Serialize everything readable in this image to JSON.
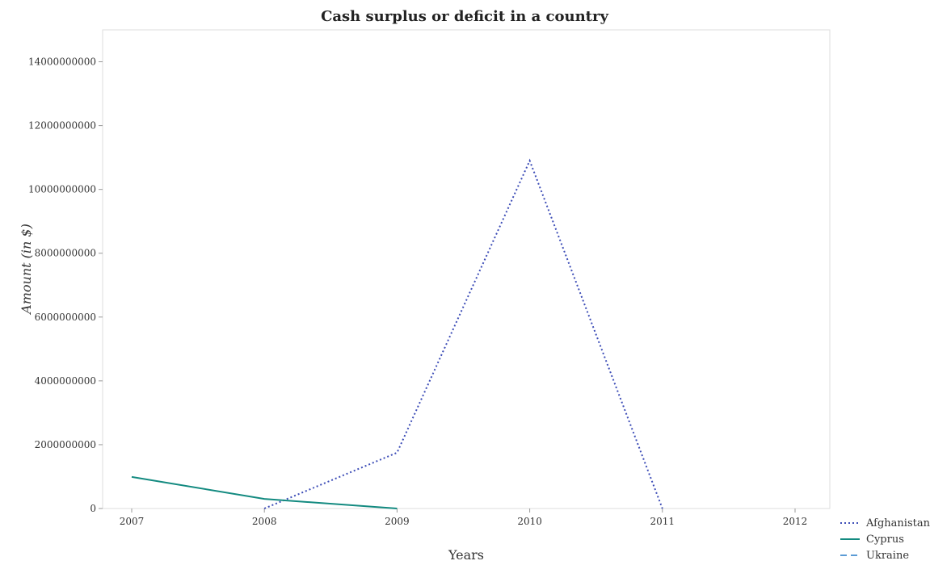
{
  "chart_data": {
    "type": "line",
    "title": "Cash surplus or deficit in a country",
    "xlabel": "Years",
    "ylabel": "Amount (in $)",
    "categories": [
      "2007",
      "2008",
      "2009",
      "2010",
      "2011",
      "2012"
    ],
    "ylim": [
      0,
      15000000000
    ],
    "yticks": [
      0,
      2000000000,
      4000000000,
      6000000000,
      8000000000,
      10000000000,
      12000000000,
      14000000000
    ],
    "ytick_labels": [
      "0",
      "2000000000",
      "4000000000",
      "6000000000",
      "8000000000",
      "10000000000",
      "12000000000",
      "14000000000"
    ],
    "legend_position": "bottom-right",
    "series": [
      {
        "name": "Afghanistan",
        "color": "#3d4db7",
        "style": "dotted",
        "values": [
          null,
          0,
          1750000000,
          10900000000,
          0,
          null
        ]
      },
      {
        "name": "Cyprus",
        "color": "#138a80",
        "style": "solid",
        "values": [
          990000000,
          300000000,
          0,
          null,
          null,
          null
        ]
      },
      {
        "name": "Ukraine",
        "color": "#5b9bd5",
        "style": "dashed",
        "values": [
          null,
          null,
          null,
          null,
          null,
          null
        ]
      }
    ]
  }
}
